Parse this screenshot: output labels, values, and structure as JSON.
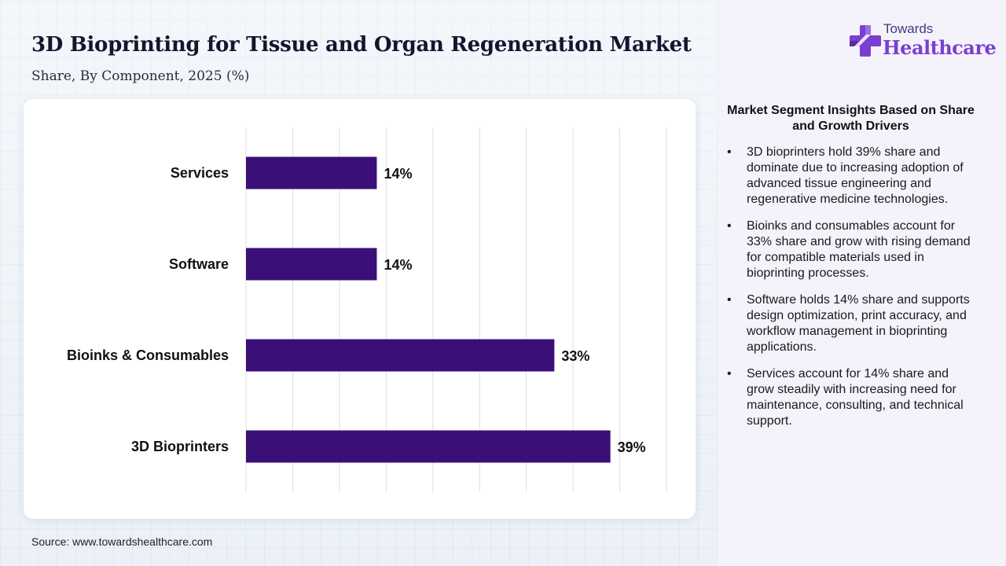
{
  "header": {
    "title": "3D Bioprinting for Tissue and Organ Regeneration Market",
    "subtitle": "Share, By Component, 2025 (%)"
  },
  "logo": {
    "line1": "Towards",
    "line2": "Healthcare",
    "icon": "medical-cross-icon",
    "colors": {
      "primary": "#7a3fd0",
      "secondary": "#3b3f7a"
    }
  },
  "chart_data": {
    "type": "bar",
    "orientation": "horizontal",
    "categories": [
      "Services",
      "Software",
      "Bioinks & Consumables",
      "3D Bioprinters"
    ],
    "values": [
      14,
      14,
      33,
      39
    ],
    "data_labels": [
      "14%",
      "14%",
      "33%",
      "39%"
    ],
    "xlim": [
      0,
      45
    ],
    "grid": true,
    "bar_color": "#3a0f78",
    "legend": "none"
  },
  "insights": {
    "title": "Market Segment Insights Based on Share and Growth Drivers",
    "bullet_symbol": "•",
    "items": [
      "3D bioprinters hold 39% share and dominate due to increasing adoption of advanced tissue engineering and regenerative medicine technologies.",
      "Bioinks and consumables account for 33% share and grow with rising demand for compatible materials used in bioprinting processes.",
      "Software holds 14% share and supports design optimization, print accuracy, and workflow management in bioprinting applications.",
      "Services account for 14% share and grow steadily with increasing need for maintenance, consulting, and technical support."
    ]
  },
  "footer": {
    "source": "Source: www.towardshealthcare.com"
  }
}
